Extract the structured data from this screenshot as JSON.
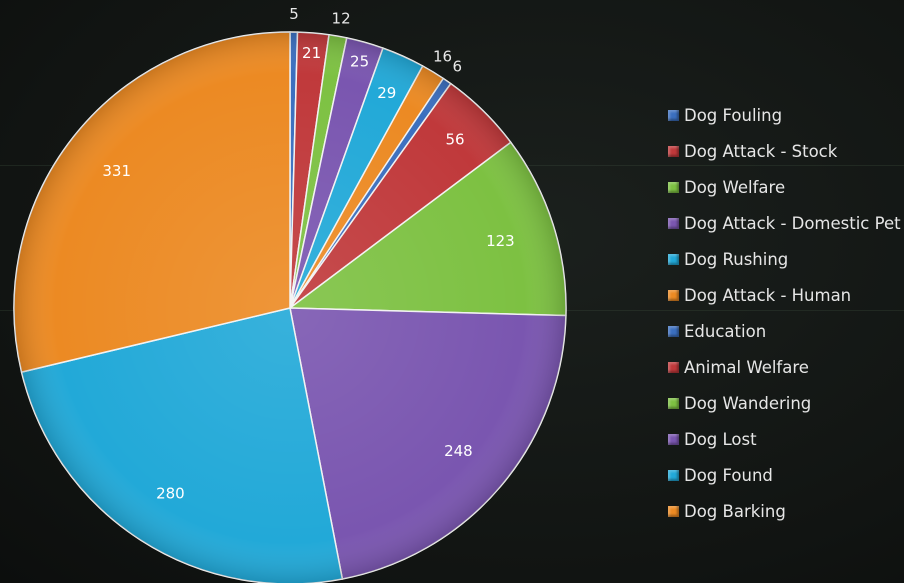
{
  "chart_data": {
    "type": "pie",
    "title": "",
    "categories": [
      "Dog Fouling",
      "Dog Attack - Stock",
      "Dog Welfare",
      "Dog Attack - Domestic Pet",
      "Dog Rushing",
      "Dog Attack - Human",
      "Education",
      "Animal Welfare",
      "Dog Wandering",
      "Dog Lost",
      "Dog Found",
      "Dog Barking"
    ],
    "values": [
      5,
      21,
      12,
      25,
      29,
      16,
      6,
      56,
      123,
      248,
      280,
      331
    ],
    "labels": [
      "5",
      "21",
      "12",
      "25",
      "29",
      "16",
      "6",
      "56",
      "123",
      "248",
      "280",
      "331"
    ],
    "colors": [
      "#3b6fbf",
      "#c0393b",
      "#7dc142",
      "#7a56b0",
      "#22a9d8",
      "#ec8a23",
      "#3b6fbf",
      "#c0393b",
      "#7dc142",
      "#7a56b0",
      "#22a9d8",
      "#ec8a23"
    ],
    "legend_position": "right",
    "start_angle_deg": 0,
    "direction": "clockwise"
  }
}
